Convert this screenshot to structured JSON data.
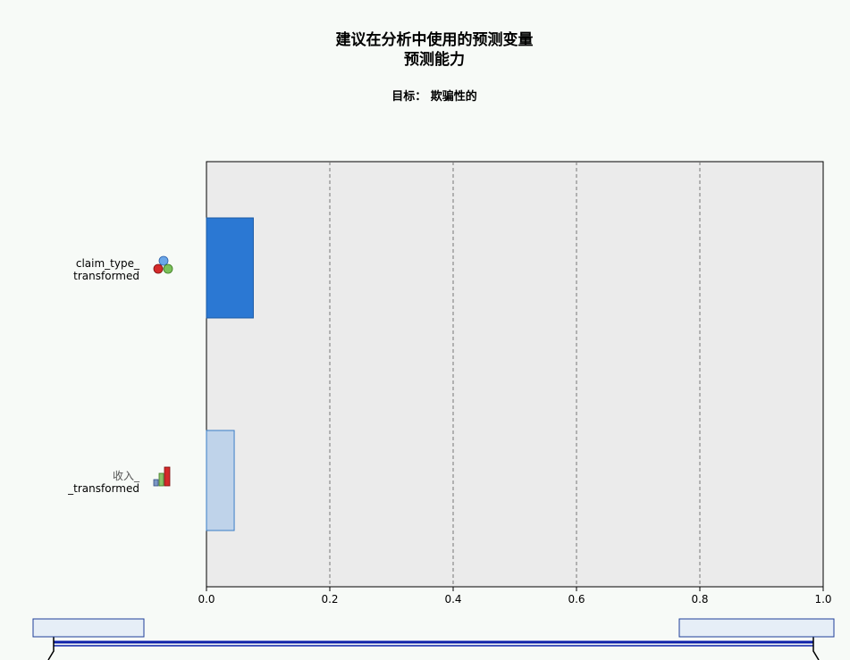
{
  "chart_data": {
    "type": "bar",
    "orientation": "horizontal",
    "title_lines": [
      "建议在分析中使用的预测变量",
      "预测能力"
    ],
    "subtitle": "目标： 欺骗性的",
    "categories": [
      {
        "label_lines": [
          "claim_type_",
          "transformed"
        ],
        "icon": "nominal-measure-icon",
        "value": 0.076,
        "color": "#2b78d3",
        "stroke": "#1a5aa6"
      },
      {
        "label_lines": [
          "收入_",
          "_transformed"
        ],
        "icon": "scale-measure-icon",
        "value": 0.045,
        "color": "#bfd3ea",
        "stroke": "#3a7cc6"
      }
    ],
    "xlim": [
      0,
      1.0
    ],
    "xticks": [
      "0.0",
      "0.2",
      "0.4",
      "0.6",
      "0.8",
      "1.0"
    ],
    "grid": "vertical-dashed",
    "plot_background": "#ebebeb"
  },
  "slider": {
    "left_handle": "range-slider-left-handle",
    "right_handle": "range-slider-right-handle",
    "track_color": "#0c1fa8",
    "handle_fill": "#e6eef7",
    "handle_stroke": "#1f3f9a"
  }
}
